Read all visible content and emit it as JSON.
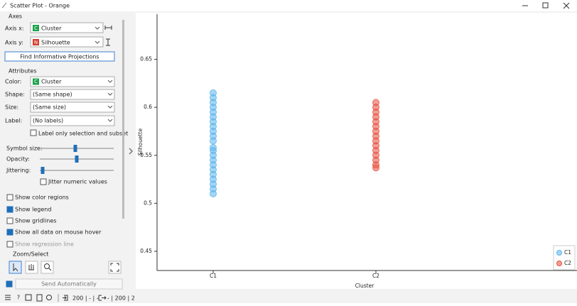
{
  "window": {
    "title": "Scatter Plot - Orange"
  },
  "panel": {
    "axes": {
      "heading": "Axes",
      "x_label": "Axis x:",
      "x_badge": "C",
      "x_value": "Cluster",
      "y_label": "Axis y:",
      "y_badge": "N",
      "y_value": "Silhouette"
    },
    "find_button": "Find Informative Projections",
    "attributes": {
      "heading": "Attributes",
      "color_badge": "C",
      "rows": [
        [
          "Color:",
          "Cluster"
        ],
        [
          "Shape:",
          "(Same shape)"
        ],
        [
          "Size:",
          "(Same size)"
        ],
        [
          "Label:",
          "(No labels)"
        ]
      ],
      "label_only": "Label only selection and subset"
    },
    "sliders": [
      "Symbol size:",
      "Opacity:",
      "Jittering:"
    ],
    "jitter_numeric": "Jitter numeric values",
    "checks": [
      "Show color regions",
      "Show legend",
      "Show gridlines",
      "Show all data on mouse hover",
      "Show regression line"
    ],
    "zoom_heading": "Zoom/Select",
    "send": "Send Automatically"
  },
  "status": {
    "input": "200 | - | -",
    "output": "- | 200 | 2"
  },
  "chart_data": {
    "type": "scatter",
    "x_label": "Cluster",
    "y_label": "Silhouette",
    "categories": [
      "C1",
      "C2"
    ],
    "series": [
      {
        "name": "C1",
        "color": "#5ab4ec",
        "values": [
          0.51,
          0.515,
          0.52,
          0.525,
          0.53,
          0.535,
          0.54,
          0.545,
          0.55,
          0.555,
          0.558,
          0.565,
          0.57,
          0.575,
          0.58,
          0.585,
          0.59,
          0.595,
          0.6,
          0.605,
          0.61,
          0.615
        ]
      },
      {
        "name": "C2",
        "color": "#e8503f",
        "values": [
          0.537,
          0.54,
          0.545,
          0.55,
          0.555,
          0.56,
          0.565,
          0.57,
          0.575,
          0.58,
          0.585,
          0.59,
          0.595,
          0.6,
          0.605
        ]
      }
    ],
    "ylim": [
      0.43,
      0.697
    ],
    "yticks": [
      0.45,
      0.5,
      0.55,
      0.6,
      0.65
    ],
    "legend": "lower right"
  }
}
